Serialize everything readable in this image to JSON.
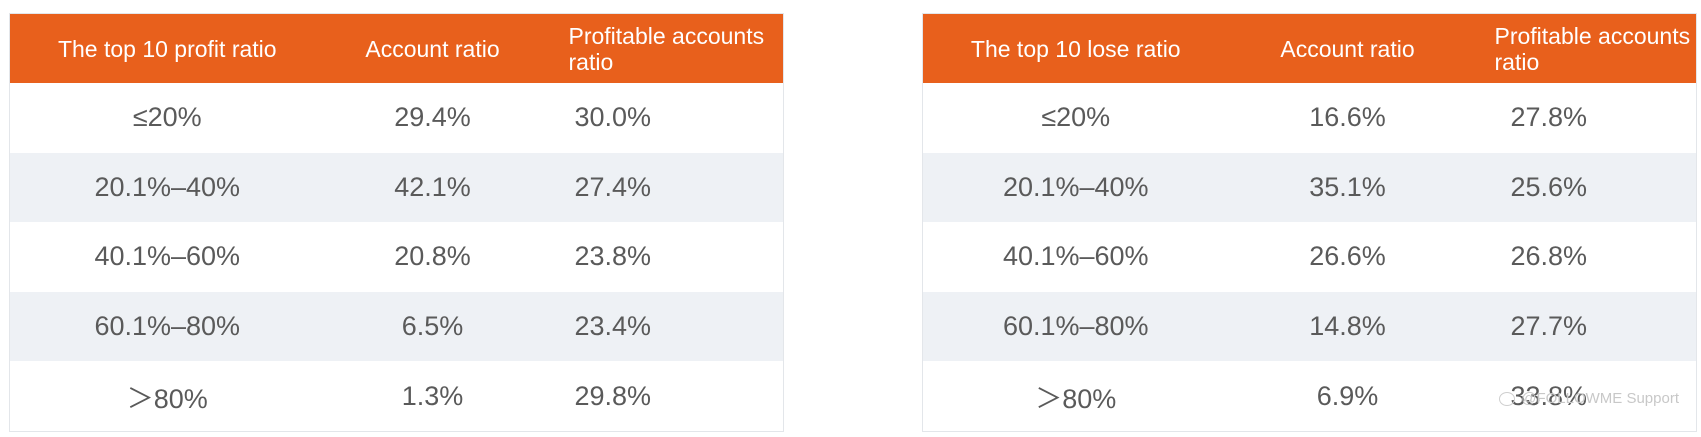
{
  "tables": [
    {
      "headers": [
        "The top 10 profit ratio",
        "Account ratio",
        "Profitable accounts ratio"
      ],
      "rows": [
        [
          "≤20%",
          "29.4%",
          "30.0%"
        ],
        [
          "20.1%–40%",
          "42.1%",
          "27.4%"
        ],
        [
          "40.1%–60%",
          "20.8%",
          "23.8%"
        ],
        [
          "60.1%–80%",
          "6.5%",
          "23.4%"
        ],
        [
          "＞80%",
          "1.3%",
          "29.8%"
        ]
      ]
    },
    {
      "headers": [
        "The top 10 lose ratio",
        "Account ratio",
        "Profitable accounts ratio"
      ],
      "rows": [
        [
          "≤20%",
          "16.6%",
          "27.8%"
        ],
        [
          "20.1%–40%",
          "35.1%",
          "25.6%"
        ],
        [
          "40.1%–60%",
          "26.6%",
          "26.8%"
        ],
        [
          "60.1%–80%",
          "14.8%",
          "27.7%"
        ],
        [
          "＞80%",
          "6.9%",
          "33.8%"
        ]
      ]
    }
  ],
  "watermark": {
    "text": "@FOLLOWME Support",
    "icon": "chat-bubble-icon"
  },
  "colors": {
    "header_bg": "#e8601c",
    "header_text": "#ffffff",
    "row_alt_bg": "#eef1f5",
    "cell_text": "#5a5a5a"
  }
}
